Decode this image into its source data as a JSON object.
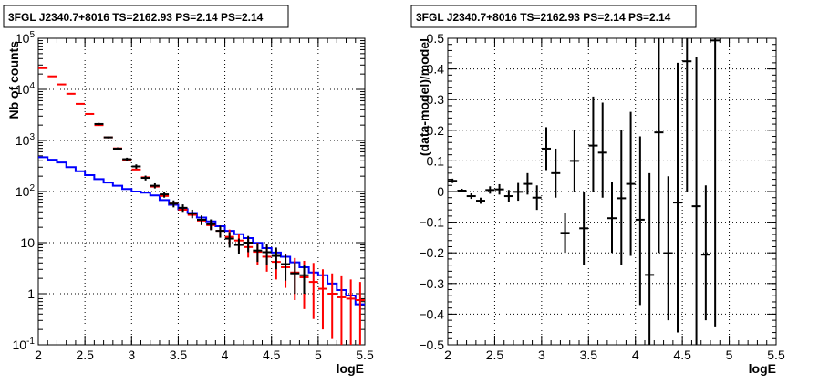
{
  "chart_data": [
    {
      "type": "scatter",
      "panel": "left",
      "title": "3FGL J2340.7+8016 TS=2162.93 PS=2.14 PS=2.14",
      "xlabel": "logE",
      "ylabel": "Nb of counts",
      "xscale": "linear",
      "yscale": "log",
      "xlim": [
        2,
        5.5
      ],
      "ylim": [
        0.1,
        100000
      ],
      "grid": true,
      "x_ticks": [
        "2",
        "2.5",
        "3",
        "3.5",
        "4",
        "4.5",
        "5",
        "5.5"
      ],
      "y_ticks": [
        "10^-1",
        "1",
        "10",
        "10^2",
        "10^3",
        "10^4",
        "10^5"
      ],
      "series": [
        {
          "kind": "histogram-step",
          "color": "#0000ff",
          "bins": [
            2.0,
            2.1,
            2.2,
            2.3,
            2.4,
            2.5,
            2.6,
            2.7,
            2.8,
            2.9,
            3.0,
            3.1,
            3.2,
            3.3,
            3.4,
            3.5,
            3.6,
            3.7,
            3.8,
            3.9,
            4.0,
            4.1,
            4.2,
            4.3,
            4.4,
            4.5,
            4.6,
            4.7,
            4.8,
            4.9,
            5.0,
            5.1,
            5.2,
            5.3,
            5.4,
            5.5
          ],
          "values": [
            470,
            420,
            370,
            300,
            250,
            210,
            175,
            150,
            130,
            112,
            100,
            95,
            84,
            68,
            55,
            45,
            38,
            31,
            26,
            21,
            17,
            14.6,
            12.3,
            9.9,
            7.8,
            6.4,
            5.3,
            4.1,
            3.3,
            2.6,
            2.3,
            1.58,
            1.18,
            0.92,
            0.62
          ]
        },
        {
          "kind": "markers-with-errors",
          "color": "#ff0000",
          "x": [
            2.05,
            2.15,
            2.25,
            2.35,
            2.45,
            2.55,
            2.65,
            2.75,
            2.85,
            2.95,
            3.05,
            3.15,
            3.25,
            3.35,
            3.45,
            3.55,
            3.65,
            3.75,
            3.85,
            3.95,
            4.05,
            4.15,
            4.25,
            4.35,
            4.45,
            4.55,
            4.65,
            4.75,
            4.85,
            4.95,
            5.05,
            5.15,
            5.25,
            5.35,
            5.45
          ],
          "y": [
            26000,
            18000,
            12500,
            8200,
            5200,
            3300,
            2000,
            1150,
            700,
            420,
            270,
            190,
            125,
            82,
            58,
            44,
            35,
            27,
            22,
            17,
            13,
            11,
            8.2,
            6.6,
            5.3,
            4.2,
            3.3,
            2.6,
            2.1,
            1.7,
            1.25,
            1.0,
            0.85,
            0.8,
            0.75
          ],
          "y_low": [
            26000,
            18000,
            12500,
            8200,
            5200,
            3300,
            2000,
            1150,
            700,
            420,
            270,
            190,
            125,
            82,
            58,
            44,
            33,
            24,
            18,
            13,
            9,
            7,
            5.1,
            3.6,
            2.7,
            1.9,
            1.3,
            0.75,
            0.5,
            0.32,
            0.2,
            0.13,
            0.1,
            0.1,
            0.1
          ],
          "y_high": [
            26000,
            18000,
            12500,
            8200,
            5200,
            3300,
            2000,
            1150,
            700,
            420,
            270,
            190,
            125,
            82,
            58,
            44,
            37,
            30,
            26,
            21,
            18,
            15,
            12,
            10,
            8.6,
            7.3,
            6,
            5,
            4.4,
            4,
            3,
            2.5,
            2.2,
            1.9,
            1.7
          ]
        },
        {
          "kind": "markers-with-errors",
          "color": "#000000",
          "x": [
            2.65,
            2.75,
            2.85,
            2.95,
            3.05,
            3.15,
            3.25,
            3.35,
            3.45,
            3.55,
            3.65,
            3.75,
            3.85,
            3.95,
            4.05,
            4.15,
            4.25,
            4.35,
            4.45,
            4.55,
            4.65,
            4.75,
            4.85
          ],
          "y": [
            2100,
            1150,
            690,
            430,
            310,
            185,
            130,
            88,
            58,
            48,
            37,
            28,
            23,
            17,
            12,
            9,
            10,
            7,
            6.5,
            5.5,
            3.8,
            2.5,
            2.3
          ],
          "y_low": [
            2000,
            1100,
            650,
            400,
            280,
            165,
            115,
            76,
            49,
            40,
            30,
            22,
            17.5,
            12.5,
            8,
            6,
            6.5,
            4.2,
            3.6,
            3,
            1.8,
            1,
            1
          ],
          "y_high": [
            2200,
            1200,
            730,
            460,
            340,
            205,
            145,
            100,
            67,
            56,
            44,
            34,
            28.5,
            21.5,
            16,
            12,
            13.5,
            9.8,
            9.4,
            8,
            5.8,
            4,
            3.6
          ]
        }
      ]
    },
    {
      "type": "scatter",
      "panel": "right",
      "title": "3FGL J2340.7+8016 TS=2162.93 PS=2.14 PS=2.14",
      "xlabel": "logE",
      "ylabel": "(data-model)/model",
      "xscale": "linear",
      "yscale": "linear",
      "xlim": [
        2,
        5.5
      ],
      "ylim": [
        -0.5,
        0.5
      ],
      "grid": true,
      "x_ticks": [
        "2",
        "2.5",
        "3",
        "3.5",
        "4",
        "4.5",
        "5",
        "5.5"
      ],
      "y_ticks": [
        "-0.5",
        "-0.4",
        "-0.3",
        "-0.2",
        "-0.1",
        "0",
        "0.1",
        "0.2",
        "0.3",
        "0.4",
        "0.5"
      ],
      "series": [
        {
          "kind": "markers-with-errors",
          "color": "#000000",
          "x": [
            2.05,
            2.15,
            2.25,
            2.35,
            2.45,
            2.55,
            2.65,
            2.75,
            2.85,
            2.95,
            3.05,
            3.15,
            3.25,
            3.35,
            3.45,
            3.55,
            3.65,
            3.75,
            3.85,
            3.95,
            4.05,
            4.15,
            4.25,
            4.35,
            4.45,
            4.55,
            4.65,
            4.75,
            4.85
          ],
          "y": [
            0.035,
            0.003,
            -0.015,
            -0.03,
            0.005,
            0.007,
            -0.015,
            -0.001,
            0.025,
            -0.02,
            0.14,
            0.06,
            -0.135,
            0.1,
            -0.12,
            0.15,
            0.127,
            -0.087,
            -0.022,
            0.025,
            -0.092,
            -0.272,
            0.193,
            -0.201,
            -0.036,
            0.425,
            -0.048,
            -0.206,
            0.493
          ],
          "y_low": [
            0.028,
            -0.003,
            -0.024,
            -0.04,
            -0.007,
            -0.01,
            -0.035,
            -0.03,
            -0.01,
            -0.06,
            0.07,
            -0.02,
            -0.2,
            0.0,
            -0.24,
            0.0,
            -0.02,
            -0.2,
            -0.24,
            -0.21,
            -0.37,
            -0.6,
            -0.2,
            -0.42,
            -0.46,
            0.0,
            -0.5,
            -0.42,
            -0.44
          ],
          "y_high": [
            0.042,
            0.009,
            -0.006,
            -0.02,
            0.017,
            0.024,
            0.005,
            0.028,
            0.06,
            0.02,
            0.21,
            0.14,
            -0.07,
            0.2,
            0.0,
            0.31,
            0.29,
            0.03,
            0.2,
            0.26,
            0.18,
            0.06,
            0.61,
            0.05,
            0.42,
            0.77,
            0.44,
            0.02,
            1.12
          ]
        }
      ]
    }
  ]
}
